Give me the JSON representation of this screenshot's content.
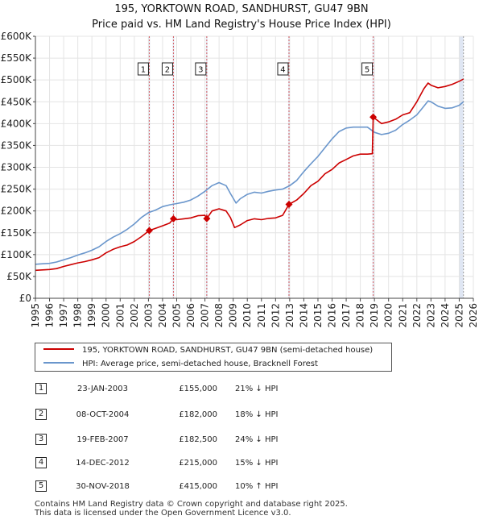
{
  "chart_title": {
    "line1": "195, YORKTOWN ROAD, SANDHURST, GU47 9BN",
    "line2": "Price paid vs. HM Land Registry's House Price Index (HPI)"
  },
  "colors": {
    "property": "#cc0000",
    "hpi": "#6a96cc",
    "sale_band": "#dfe6f3",
    "sale_line": "#cc0000"
  },
  "chart_data": {
    "type": "line",
    "title": "195, YORKTOWN ROAD, SANDHURST, GU47 9BN — Price paid vs. HM Land Registry's House Price Index (HPI)",
    "xlabel": "",
    "ylabel": "",
    "xlim": [
      1995,
      2026
    ],
    "ylim": [
      0,
      600000
    ],
    "x_ticks": [
      1995,
      1996,
      1997,
      1998,
      1999,
      2000,
      2001,
      2002,
      2003,
      2004,
      2005,
      2006,
      2007,
      2008,
      2009,
      2010,
      2011,
      2012,
      2013,
      2014,
      2015,
      2016,
      2017,
      2018,
      2019,
      2020,
      2021,
      2022,
      2023,
      2024,
      2025,
      2026
    ],
    "y_ticks": [
      {
        "value": 0,
        "label": "£0"
      },
      {
        "value": 50000,
        "label": "£50K"
      },
      {
        "value": 100000,
        "label": "£100K"
      },
      {
        "value": 150000,
        "label": "£150K"
      },
      {
        "value": 200000,
        "label": "£200K"
      },
      {
        "value": 250000,
        "label": "£250K"
      },
      {
        "value": 300000,
        "label": "£300K"
      },
      {
        "value": 350000,
        "label": "£350K"
      },
      {
        "value": 400000,
        "label": "£400K"
      },
      {
        "value": 450000,
        "label": "£450K"
      },
      {
        "value": 500000,
        "label": "£500K"
      },
      {
        "value": 550000,
        "label": "£550K"
      },
      {
        "value": 600000,
        "label": "£600K"
      }
    ],
    "grid": true,
    "legend_position": "below",
    "series": [
      {
        "name": "195, YORKTOWN ROAD, SANDHURST, GU47 9BN (semi-detached house)",
        "color": "#cc0000",
        "x": [
          1995.0,
          1995.5,
          1996.0,
          1996.5,
          1997.0,
          1997.5,
          1998.0,
          1998.5,
          1999.0,
          1999.5,
          2000.0,
          2000.5,
          2001.0,
          2001.5,
          2002.0,
          2002.5,
          2003.06,
          2003.5,
          2004.0,
          2004.5,
          2004.77,
          2005.0,
          2005.5,
          2006.0,
          2006.5,
          2007.0,
          2007.13,
          2007.5,
          2008.0,
          2008.5,
          2008.8,
          2009.1,
          2009.5,
          2010.0,
          2010.5,
          2011.0,
          2011.5,
          2012.0,
          2012.5,
          2012.95,
          2013.5,
          2014.0,
          2014.5,
          2015.0,
          2015.5,
          2016.0,
          2016.5,
          2017.0,
          2017.5,
          2018.0,
          2018.5,
          2018.85,
          2018.91,
          2019.5,
          2020.0,
          2020.5,
          2021.0,
          2021.5,
          2022.0,
          2022.5,
          2022.8,
          2023.0,
          2023.5,
          2024.0,
          2024.5,
          2025.0,
          2025.3
        ],
        "values": [
          64000,
          65000,
          66000,
          68000,
          73000,
          77000,
          81000,
          84000,
          88000,
          93000,
          104000,
          112000,
          118000,
          122000,
          130000,
          141000,
          155000,
          160000,
          166000,
          172000,
          182000,
          180000,
          182000,
          184000,
          189000,
          190000,
          182500,
          200000,
          205000,
          200000,
          185000,
          162000,
          168000,
          178000,
          182000,
          180000,
          183000,
          184000,
          190000,
          215000,
          225000,
          240000,
          258000,
          268000,
          285000,
          295000,
          310000,
          318000,
          326000,
          330000,
          330000,
          331000,
          415000,
          400000,
          404000,
          410000,
          420000,
          425000,
          450000,
          480000,
          493000,
          488000,
          482000,
          485000,
          490000,
          497000,
          502000
        ]
      },
      {
        "name": "HPI: Average price, semi-detached house, Bracknell Forest",
        "color": "#6a96cc",
        "x": [
          1995.0,
          1995.5,
          1996.0,
          1996.5,
          1997.0,
          1997.5,
          1998.0,
          1998.5,
          1999.0,
          1999.5,
          2000.0,
          2000.5,
          2001.0,
          2001.5,
          2002.0,
          2002.5,
          2003.0,
          2003.5,
          2004.0,
          2004.5,
          2005.0,
          2005.5,
          2006.0,
          2006.5,
          2007.0,
          2007.5,
          2008.0,
          2008.5,
          2008.8,
          2009.2,
          2009.5,
          2010.0,
          2010.5,
          2011.0,
          2011.5,
          2012.0,
          2012.5,
          2013.0,
          2013.5,
          2014.0,
          2014.5,
          2015.0,
          2015.5,
          2016.0,
          2016.5,
          2017.0,
          2017.5,
          2018.0,
          2018.5,
          2019.0,
          2019.5,
          2020.0,
          2020.5,
          2021.0,
          2021.5,
          2022.0,
          2022.5,
          2022.8,
          2023.0,
          2023.5,
          2024.0,
          2024.5,
          2025.0,
          2025.3
        ],
        "values": [
          78000,
          79000,
          80000,
          83000,
          88000,
          93000,
          99000,
          104000,
          110000,
          118000,
          130000,
          140000,
          148000,
          158000,
          170000,
          185000,
          196000,
          202000,
          210000,
          214000,
          217000,
          220000,
          225000,
          234000,
          245000,
          258000,
          265000,
          258000,
          240000,
          218000,
          228000,
          238000,
          243000,
          241000,
          245000,
          248000,
          250000,
          258000,
          270000,
          290000,
          308000,
          325000,
          345000,
          365000,
          382000,
          390000,
          392000,
          392000,
          392000,
          380000,
          375000,
          378000,
          385000,
          398000,
          408000,
          420000,
          440000,
          452000,
          450000,
          440000,
          435000,
          436000,
          442000,
          450000
        ]
      }
    ],
    "sales": [
      {
        "id": "1",
        "x": 2003.06,
        "value": 155000
      },
      {
        "id": "2",
        "x": 2004.77,
        "value": 182000
      },
      {
        "id": "3",
        "x": 2007.13,
        "value": 182500
      },
      {
        "id": "4",
        "x": 2012.95,
        "value": 215000
      },
      {
        "id": "5",
        "x": 2018.91,
        "value": 415000
      }
    ]
  },
  "legend": {
    "property_label": "195, YORKTOWN ROAD, SANDHURST, GU47 9BN (semi-detached house)",
    "hpi_label": "HPI: Average price, semi-detached house, Bracknell Forest"
  },
  "sales_table": [
    {
      "num": "1",
      "date": "23-JAN-2003",
      "price": "£155,000",
      "hpi": "21% ↓ HPI"
    },
    {
      "num": "2",
      "date": "08-OCT-2004",
      "price": "£182,000",
      "hpi": "18% ↓ HPI"
    },
    {
      "num": "3",
      "date": "19-FEB-2007",
      "price": "£182,500",
      "hpi": "24% ↓ HPI"
    },
    {
      "num": "4",
      "date": "14-DEC-2012",
      "price": "£215,000",
      "hpi": "15% ↓ HPI"
    },
    {
      "num": "5",
      "date": "30-NOV-2018",
      "price": "£415,000",
      "hpi": "10% ↑ HPI"
    }
  ],
  "footer": {
    "line1": "Contains HM Land Registry data © Crown copyright and database right 2025.",
    "line2": "This data is licensed under the Open Government Licence v3.0."
  }
}
